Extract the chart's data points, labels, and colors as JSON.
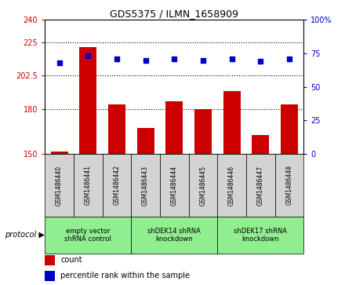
{
  "title": "GDS5375 / ILMN_1658909",
  "samples": [
    "GSM1486440",
    "GSM1486441",
    "GSM1486442",
    "GSM1486443",
    "GSM1486444",
    "GSM1486445",
    "GSM1486446",
    "GSM1486447",
    "GSM1486448"
  ],
  "count_values": [
    151.5,
    221.5,
    183.5,
    167.5,
    185.5,
    180.0,
    192.0,
    162.5,
    183.5
  ],
  "percentile_values": [
    68,
    73,
    71,
    70,
    71,
    70,
    71,
    69,
    71
  ],
  "ylim_left": [
    150,
    240
  ],
  "ylim_right": [
    0,
    100
  ],
  "yticks_left": [
    150,
    180,
    202.5,
    225,
    240
  ],
  "ytick_labels_left": [
    "150",
    "180",
    "202.5",
    "225",
    "240"
  ],
  "yticks_right": [
    0,
    25,
    50,
    75,
    100
  ],
  "ytick_labels_right": [
    "0",
    "25",
    "50",
    "75",
    "100%"
  ],
  "hlines": [
    180,
    202.5,
    225
  ],
  "bar_color": "#cc0000",
  "dot_color": "#0000cc",
  "protocol_groups": [
    {
      "label": "empty vector\nshRNA control",
      "start": 0,
      "end": 2,
      "color": "#90ee90"
    },
    {
      "label": "shDEK14 shRNA\nknockdown",
      "start": 3,
      "end": 5,
      "color": "#90ee90"
    },
    {
      "label": "shDEK17 shRNA\nknockdown",
      "start": 6,
      "end": 8,
      "color": "#90ee90"
    }
  ],
  "protocol_label": "protocol",
  "legend_count_label": "count",
  "legend_percentile_label": "percentile rank within the sample",
  "bar_width": 0.6,
  "sample_box_color": "#d3d3d3",
  "fig_width": 4.4,
  "fig_height": 3.63,
  "dpi": 100
}
